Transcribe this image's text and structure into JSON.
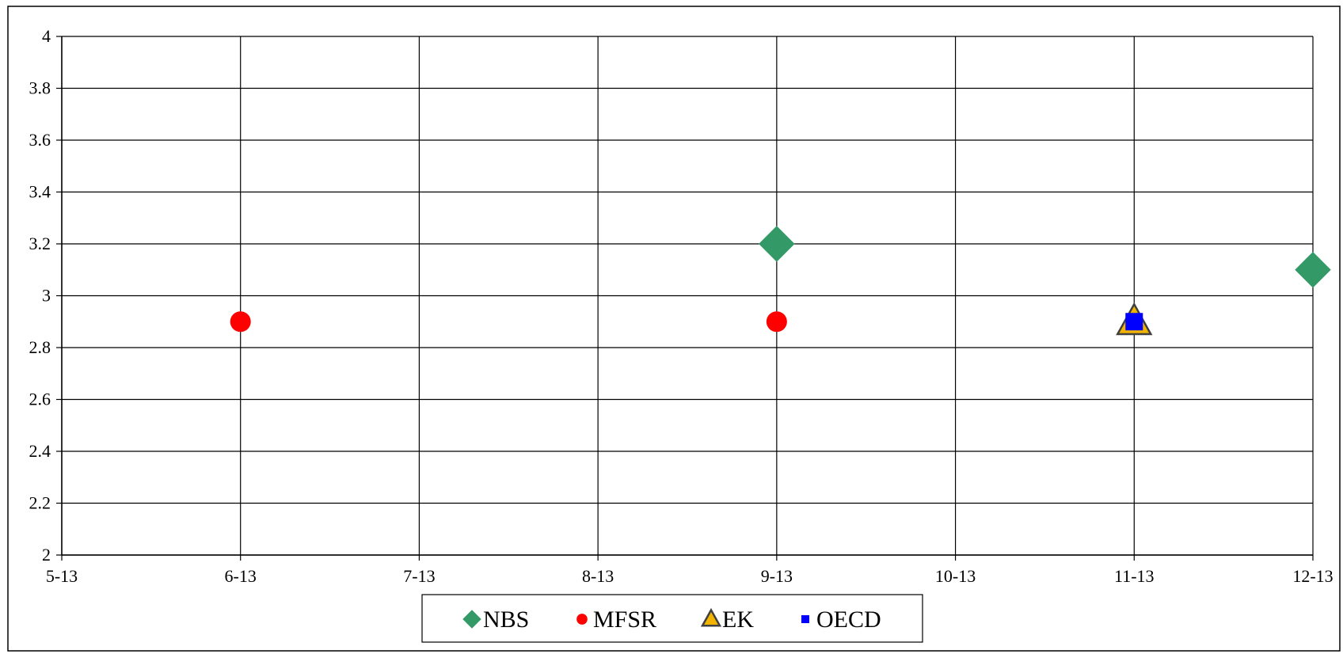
{
  "chart_data": {
    "type": "scatter",
    "title": "",
    "xlabel": "",
    "ylabel": "",
    "x_categories": [
      "5-13",
      "6-13",
      "7-13",
      "8-13",
      "9-13",
      "10-13",
      "11-13",
      "12-13"
    ],
    "ylim": [
      2,
      4
    ],
    "yticks": [
      "2",
      "2.2",
      "2.4",
      "2.6",
      "2.8",
      "3",
      "3.2",
      "3.4",
      "3.6",
      "3.8",
      "4"
    ],
    "grid": true,
    "legend_position": "bottom",
    "series": [
      {
        "name": "NBS",
        "marker": "diamond",
        "color": "#339966",
        "points": [
          {
            "x": "9-13",
            "y": 3.2
          },
          {
            "x": "12-13",
            "y": 3.1
          }
        ]
      },
      {
        "name": "MFSR",
        "marker": "circle",
        "color": "#ff0000",
        "points": [
          {
            "x": "6-13",
            "y": 2.9
          },
          {
            "x": "9-13",
            "y": 2.9
          }
        ]
      },
      {
        "name": "EK",
        "marker": "triangle",
        "color": "#f2b400",
        "points": [
          {
            "x": "11-13",
            "y": 2.9
          }
        ]
      },
      {
        "name": "OECD",
        "marker": "square",
        "color": "#0000ff",
        "points": [
          {
            "x": "11-13",
            "y": 2.9
          }
        ]
      }
    ]
  }
}
